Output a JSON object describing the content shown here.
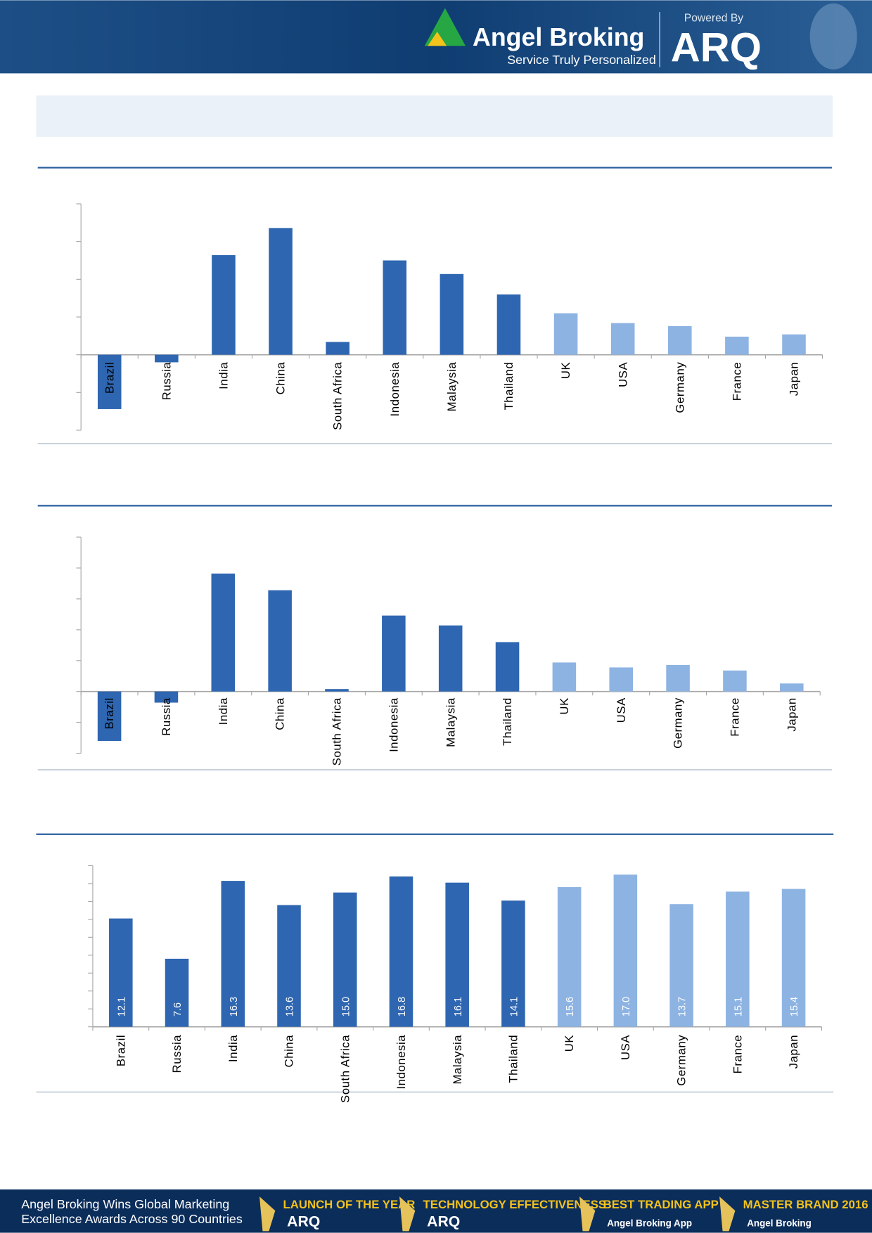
{
  "header": {
    "brand": "Angel Broking",
    "tagline": "Service Truly Personalized",
    "powered": "Powered By",
    "product": "ARQ"
  },
  "chart_data": [
    {
      "type": "bar",
      "categories": [
        "Brazil",
        "Russia",
        "India",
        "China",
        "South Africa",
        "Indonesia",
        "Malaysia",
        "Thailand",
        "UK",
        "USA",
        "Germany",
        "France",
        "Japan"
      ],
      "values": [
        -7.2,
        -1.0,
        13.2,
        16.8,
        1.7,
        12.5,
        10.7,
        8.0,
        5.5,
        4.2,
        3.8,
        2.4,
        2.7
      ],
      "colors": [
        "#2e66b1",
        "#2e66b1",
        "#2e66b1",
        "#2e66b1",
        "#2e66b1",
        "#2e66b1",
        "#2e66b1",
        "#2e66b1",
        "#8db3e2",
        "#8db3e2",
        "#8db3e2",
        "#8db3e2",
        "#8db3e2"
      ],
      "ylim": [
        -10,
        20
      ],
      "yticks": [
        -10,
        -5,
        0,
        5,
        10,
        15,
        20
      ]
    },
    {
      "type": "bar",
      "categories": [
        "Brazil",
        "Russia",
        "India",
        "China",
        "South Africa",
        "Indonesia",
        "Malaysia",
        "Thailand",
        "UK",
        "USA",
        "Germany",
        "France",
        "Japan"
      ],
      "values": [
        -8.0,
        -1.8,
        19.1,
        16.4,
        0.4,
        12.3,
        10.7,
        8.0,
        4.7,
        3.9,
        4.3,
        3.4,
        1.3
      ],
      "colors": [
        "#2e66b1",
        "#2e66b1",
        "#2e66b1",
        "#2e66b1",
        "#2e66b1",
        "#2e66b1",
        "#2e66b1",
        "#2e66b1",
        "#8db3e2",
        "#8db3e2",
        "#8db3e2",
        "#8db3e2",
        "#8db3e2"
      ],
      "ylim": [
        -10,
        25
      ],
      "yticks": [
        -10,
        -5,
        0,
        5,
        10,
        15,
        20,
        25
      ]
    },
    {
      "type": "bar",
      "categories": [
        "Brazil",
        "Russia",
        "India",
        "China",
        "South Africa",
        "Indonesia",
        "Malaysia",
        "Thailand",
        "UK",
        "USA",
        "Germany",
        "France",
        "Japan"
      ],
      "values": [
        12.1,
        7.6,
        16.3,
        13.6,
        15.0,
        16.8,
        16.1,
        14.1,
        15.6,
        17.0,
        13.7,
        15.1,
        15.4
      ],
      "value_labels": [
        "12.1",
        "7.6",
        "16.3",
        "13.6",
        "15.0",
        "16.8",
        "16.1",
        "14.1",
        "15.6",
        "17.0",
        "13.7",
        "15.1",
        "15.4"
      ],
      "colors": [
        "#2e66b1",
        "#2e66b1",
        "#2e66b1",
        "#2e66b1",
        "#2e66b1",
        "#2e66b1",
        "#2e66b1",
        "#2e66b1",
        "#8db3e2",
        "#8db3e2",
        "#8db3e2",
        "#8db3e2",
        "#8db3e2"
      ],
      "ylim": [
        0,
        18
      ],
      "yticks": [
        0,
        2,
        4,
        6,
        8,
        10,
        12,
        14,
        16,
        18
      ]
    }
  ],
  "footer": {
    "headline": [
      "Angel Broking Wins Global Marketing",
      "Excellence Awards Across 90 Countries"
    ],
    "awards": [
      {
        "title": "LAUNCH OF THE YEAR",
        "sub": "ARQ"
      },
      {
        "title": "TECHNOLOGY EFFECTIVENESS",
        "sub": "ARQ"
      },
      {
        "title": "BEST TRADING APP",
        "sub": "Angel Broking App"
      },
      {
        "title": "MASTER BRAND 2016",
        "sub": "Angel Broking"
      }
    ]
  }
}
